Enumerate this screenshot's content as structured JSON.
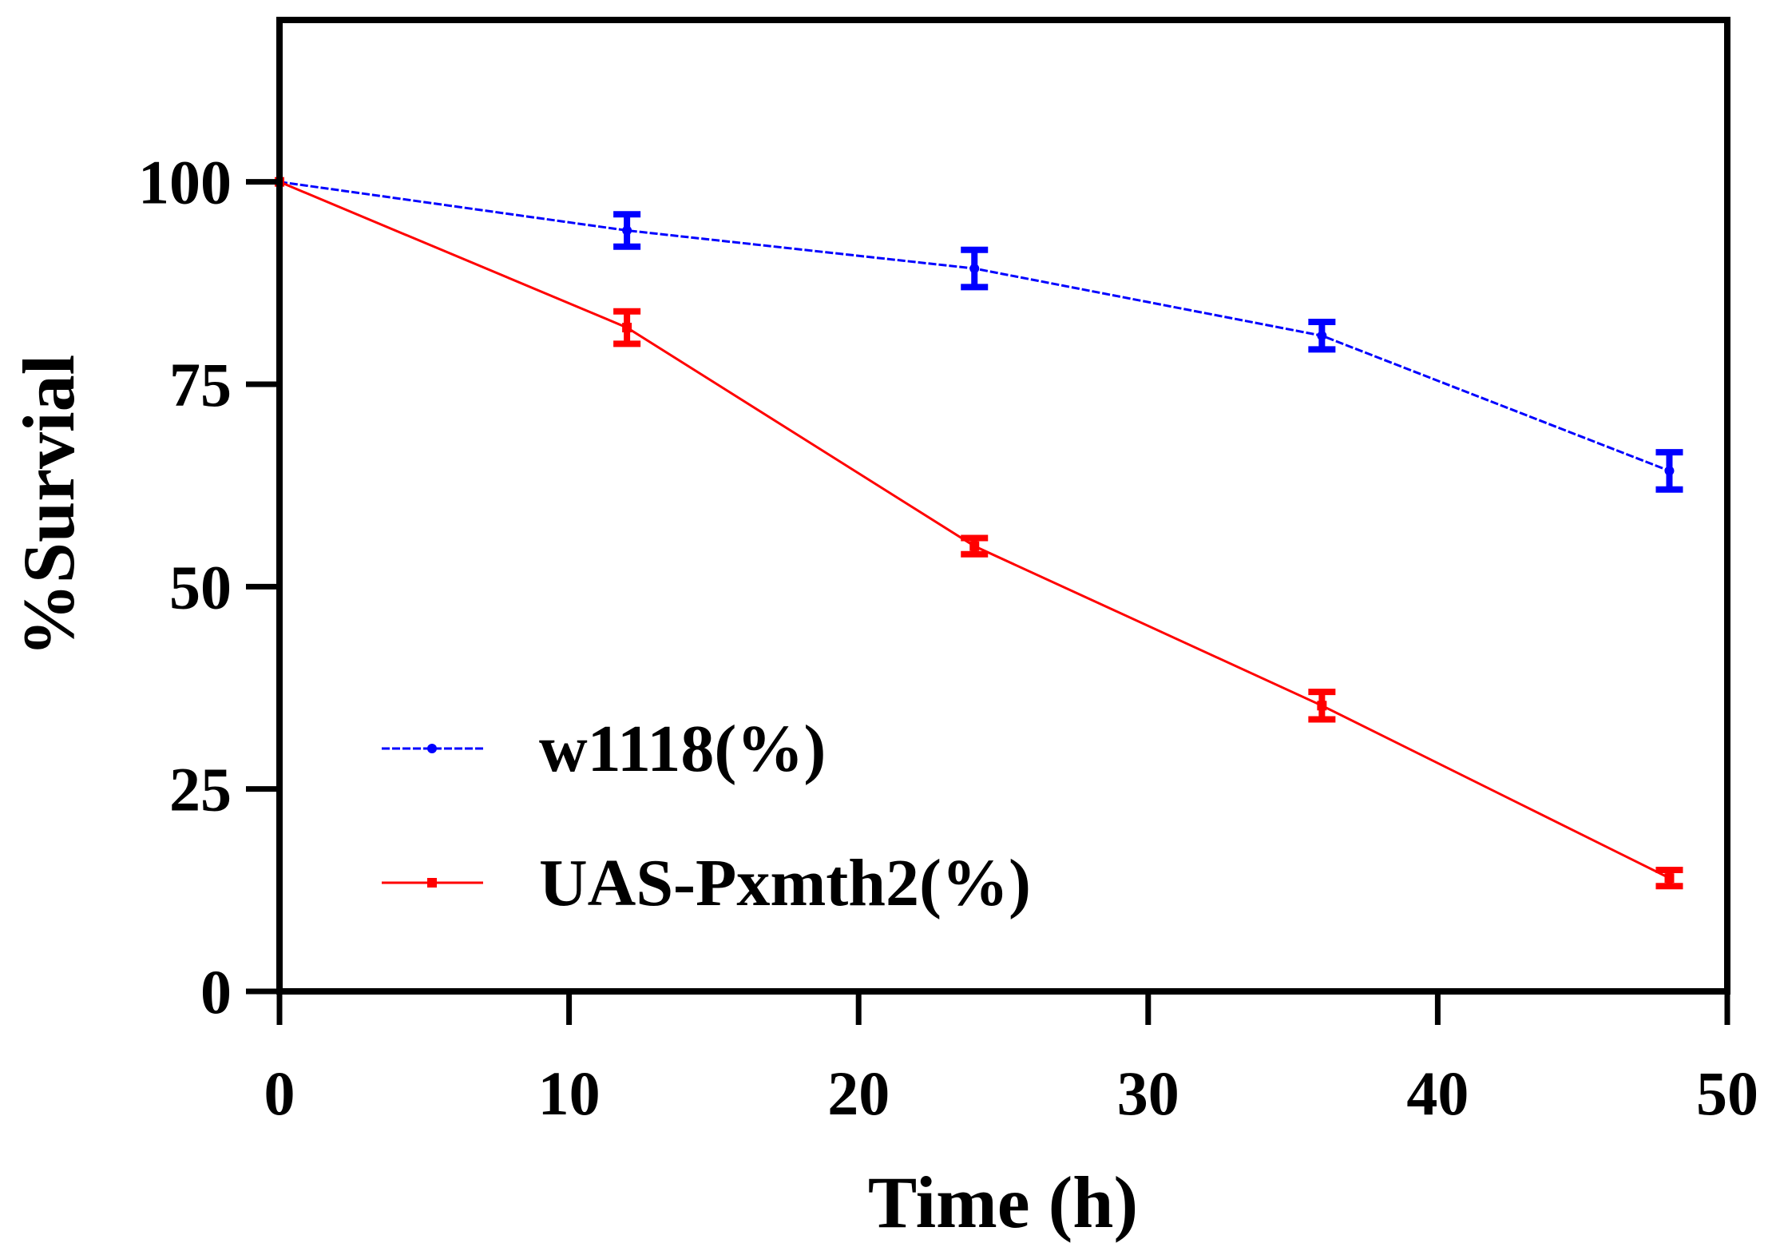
{
  "chart_data": {
    "type": "line",
    "title": "",
    "xlabel": "Time (h)",
    "ylabel": "%Survial",
    "xlim": [
      0,
      50
    ],
    "ylim": [
      0,
      120
    ],
    "xticks": [
      0,
      10,
      20,
      30,
      40,
      50
    ],
    "xtick_labels": [
      "0",
      "10",
      "20",
      "30",
      "40",
      "50"
    ],
    "yticks": [
      0,
      25,
      50,
      75,
      100
    ],
    "ytick_labels": [
      "0",
      "25",
      "50",
      "75",
      "100"
    ],
    "grid": false,
    "legend_position": "lower-left",
    "series": [
      {
        "name": "w1118(%)",
        "color": "#0000ff",
        "line_style": "dashed",
        "marker": "circle",
        "x": [
          0,
          12,
          24,
          36,
          48
        ],
        "y": [
          100,
          94,
          89.3,
          81,
          64.3
        ],
        "err": [
          0,
          2,
          2.3,
          1.7,
          2.3
        ]
      },
      {
        "name": "UAS-Pxmth2(%)",
        "color": "#ff0000",
        "line_style": "solid",
        "marker": "square",
        "x": [
          0,
          12,
          24,
          36,
          48
        ],
        "y": [
          100,
          82,
          55,
          35.3,
          14
        ],
        "err": [
          0,
          2,
          1,
          1.7,
          1
        ]
      }
    ]
  }
}
